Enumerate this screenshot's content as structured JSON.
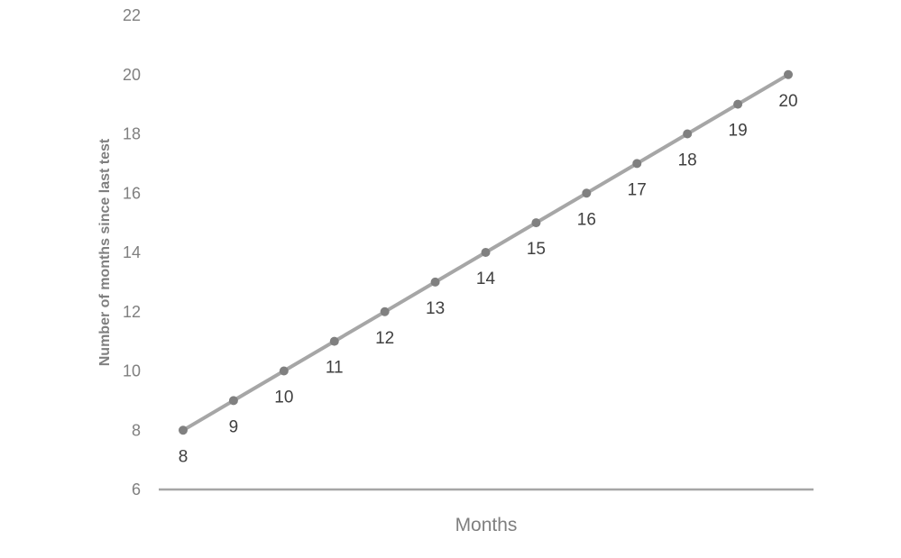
{
  "chart_data": {
    "type": "line",
    "title": "",
    "xlabel": "Months",
    "ylabel": "Number of months since last test",
    "x": [
      8,
      9,
      10,
      11,
      12,
      13,
      14,
      15,
      16,
      17,
      18,
      19,
      20
    ],
    "series": [
      {
        "values": [
          8,
          9,
          10,
          11,
          12,
          13,
          14,
          15,
          16,
          17,
          18,
          19,
          20
        ],
        "color": "#a6a6a6",
        "marker_color": "#808080"
      }
    ],
    "data_labels": [
      "8",
      "9",
      "10",
      "11",
      "12",
      "13",
      "14",
      "15",
      "16",
      "17",
      "18",
      "19",
      "20"
    ],
    "yticks": [
      "6",
      "8",
      "10",
      "12",
      "14",
      "16",
      "18",
      "20",
      "22"
    ],
    "ylim": [
      6,
      22
    ],
    "grid": false,
    "legend": "none",
    "colors": {
      "axis_line": "#a6a6a6",
      "tick_text": "#7f7f7f",
      "label_text": "#404040"
    }
  }
}
